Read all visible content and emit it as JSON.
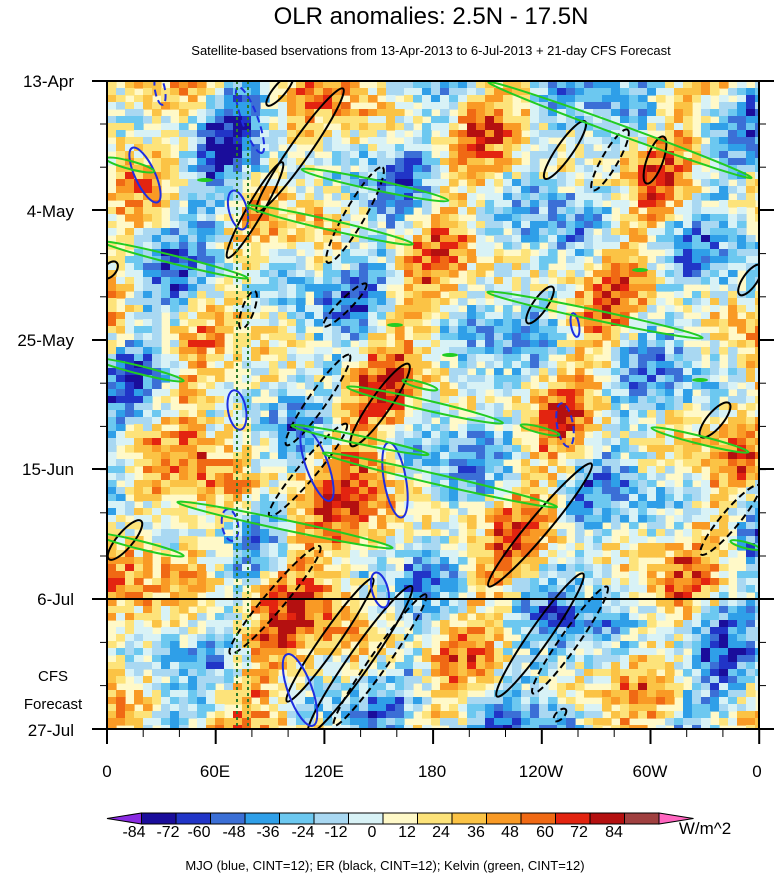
{
  "chart_data": {
    "type": "heatmap",
    "title": "OLR anomalies: 2.5N - 17.5N",
    "subtitle": "Satellite-based bservations from 13-Apr-2013 to 6-Jul-2013 + 21-day CFS Forecast",
    "y_tick_labels": [
      "13-Apr",
      "4-May",
      "25-May",
      "15-Jun",
      "6-Jul",
      "27-Jul"
    ],
    "x_tick_labels": [
      "0",
      "60E",
      "120E",
      "180",
      "120W",
      "60W",
      "0"
    ],
    "forecast_label": [
      "CFS",
      "Forecast"
    ],
    "observation_end": "6-Jul",
    "colorbar": {
      "levels": [
        -84,
        -72,
        -60,
        -48,
        -36,
        -24,
        -12,
        0,
        12,
        24,
        36,
        48,
        60,
        72,
        84
      ],
      "colors": [
        "#8a2be2",
        "#1a0d9b",
        "#2135c7",
        "#3b6fd6",
        "#2f9fe8",
        "#6cc8f0",
        "#a9d8f2",
        "#d8f2f6",
        "#fff9c8",
        "#fde37a",
        "#fbc345",
        "#f99a25",
        "#f06914",
        "#e32410",
        "#b41010",
        "#a04040",
        "#ff66c0"
      ],
      "units": "W/m^2"
    },
    "legend": "MJO (blue, CINT=12); ER (black, CINT=12); Kelvin (green, CINT=12)",
    "overlay_colors": {
      "mjo": "#1f2ee0",
      "er": "#000000",
      "kelvin": "#22cc22",
      "marker": "#2a7a2a"
    }
  }
}
